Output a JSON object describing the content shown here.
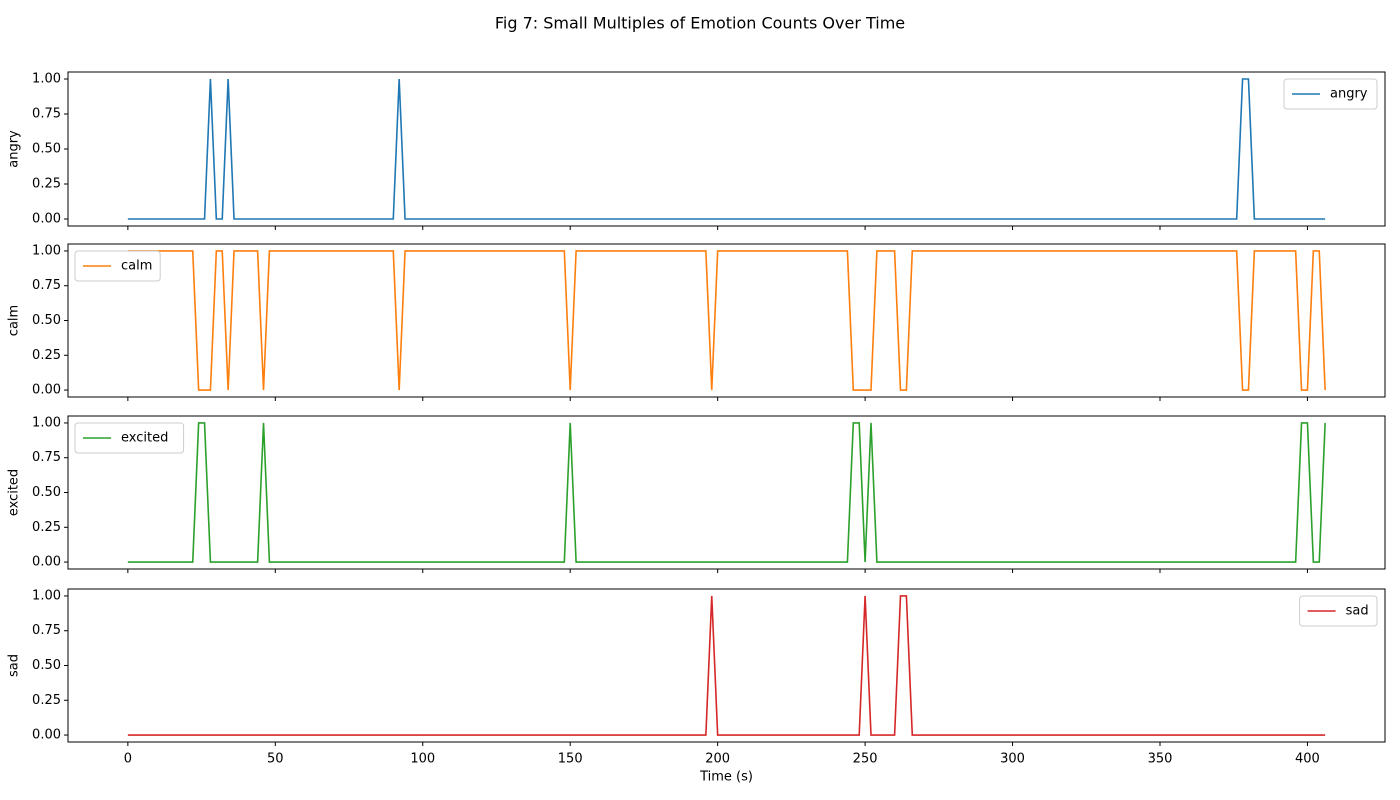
{
  "title": "Fig 7: Small Multiples of Emotion Counts Over Time",
  "chart_data": [
    {
      "type": "line",
      "ylabel": "angry",
      "legend": "upper right",
      "x": [
        0,
        26,
        28,
        30,
        32,
        34,
        36,
        90,
        92,
        94,
        376,
        378,
        380,
        382,
        406
      ],
      "series": [
        {
          "name": "angry",
          "color": "#1f77b4",
          "values": [
            0,
            0,
            1,
            0,
            0,
            1,
            0,
            0,
            1,
            0,
            0,
            1,
            1,
            0,
            0
          ]
        }
      ],
      "xlim": [
        -20.3,
        426.3
      ],
      "xticks": [
        0,
        50,
        100,
        150,
        200,
        250,
        300,
        350,
        400
      ],
      "ylim": [
        -0.05,
        1.05
      ],
      "yticks": [
        {
          "value": 0,
          "label": "0.00"
        },
        {
          "value": 0.25,
          "label": "0.25"
        },
        {
          "value": 0.5,
          "label": "0.50"
        },
        {
          "value": 0.75,
          "label": "0.75"
        },
        {
          "value": 1,
          "label": "1.00"
        }
      ]
    },
    {
      "type": "line",
      "ylabel": "calm",
      "legend": "upper left",
      "x": [
        0,
        22,
        24,
        28,
        30,
        32,
        34,
        36,
        44,
        46,
        48,
        90,
        92,
        94,
        148,
        150,
        152,
        196,
        198,
        200,
        244,
        246,
        252,
        254,
        260,
        262,
        264,
        266,
        376,
        378,
        380,
        382,
        396,
        398,
        400,
        402,
        404,
        406
      ],
      "series": [
        {
          "name": "calm",
          "color": "#ff7f0e",
          "values": [
            1,
            1,
            0,
            0,
            1,
            1,
            0,
            1,
            1,
            0,
            1,
            1,
            0,
            1,
            1,
            0,
            1,
            1,
            0,
            1,
            1,
            0,
            0,
            1,
            1,
            0,
            0,
            1,
            1,
            0,
            0,
            1,
            1,
            0,
            0,
            1,
            1,
            0
          ]
        }
      ],
      "xlim": [
        -20.3,
        426.3
      ],
      "xticks": [
        0,
        50,
        100,
        150,
        200,
        250,
        300,
        350,
        400
      ],
      "ylim": [
        -0.05,
        1.05
      ],
      "yticks": [
        {
          "value": 0,
          "label": "0.00"
        },
        {
          "value": 0.25,
          "label": "0.25"
        },
        {
          "value": 0.5,
          "label": "0.50"
        },
        {
          "value": 0.75,
          "label": "0.75"
        },
        {
          "value": 1,
          "label": "1.00"
        }
      ]
    },
    {
      "type": "line",
      "ylabel": "excited",
      "legend": "upper left",
      "x": [
        0,
        22,
        24,
        26,
        28,
        44,
        46,
        48,
        148,
        150,
        152,
        244,
        246,
        248,
        250,
        252,
        254,
        396,
        398,
        400,
        402,
        404,
        406
      ],
      "series": [
        {
          "name": "excited",
          "color": "#2ca02c",
          "values": [
            0,
            0,
            1,
            1,
            0,
            0,
            1,
            0,
            0,
            1,
            0,
            0,
            1,
            1,
            0,
            1,
            0,
            0,
            1,
            1,
            0,
            0,
            1
          ]
        }
      ],
      "xlim": [
        -20.3,
        426.3
      ],
      "xticks": [
        0,
        50,
        100,
        150,
        200,
        250,
        300,
        350,
        400
      ],
      "ylim": [
        -0.05,
        1.05
      ],
      "yticks": [
        {
          "value": 0,
          "label": "0.00"
        },
        {
          "value": 0.25,
          "label": "0.25"
        },
        {
          "value": 0.5,
          "label": "0.50"
        },
        {
          "value": 0.75,
          "label": "0.75"
        },
        {
          "value": 1,
          "label": "1.00"
        }
      ]
    },
    {
      "type": "line",
      "ylabel": "sad",
      "xlabel": "Time (s)",
      "legend": "upper right",
      "x": [
        0,
        196,
        198,
        200,
        248,
        250,
        252,
        260,
        262,
        264,
        266,
        406
      ],
      "series": [
        {
          "name": "sad",
          "color": "#d62728",
          "values": [
            0,
            0,
            1,
            0,
            0,
            1,
            0,
            0,
            1,
            1,
            0,
            0
          ]
        }
      ],
      "xlim": [
        -20.3,
        426.3
      ],
      "xticks": [
        0,
        50,
        100,
        150,
        200,
        250,
        300,
        350,
        400
      ],
      "ylim": [
        -0.05,
        1.05
      ],
      "yticks": [
        {
          "value": 0,
          "label": "0.00"
        },
        {
          "value": 0.25,
          "label": "0.25"
        },
        {
          "value": 0.5,
          "label": "0.50"
        },
        {
          "value": 0.75,
          "label": "0.75"
        },
        {
          "value": 1,
          "label": "1.00"
        }
      ]
    }
  ]
}
